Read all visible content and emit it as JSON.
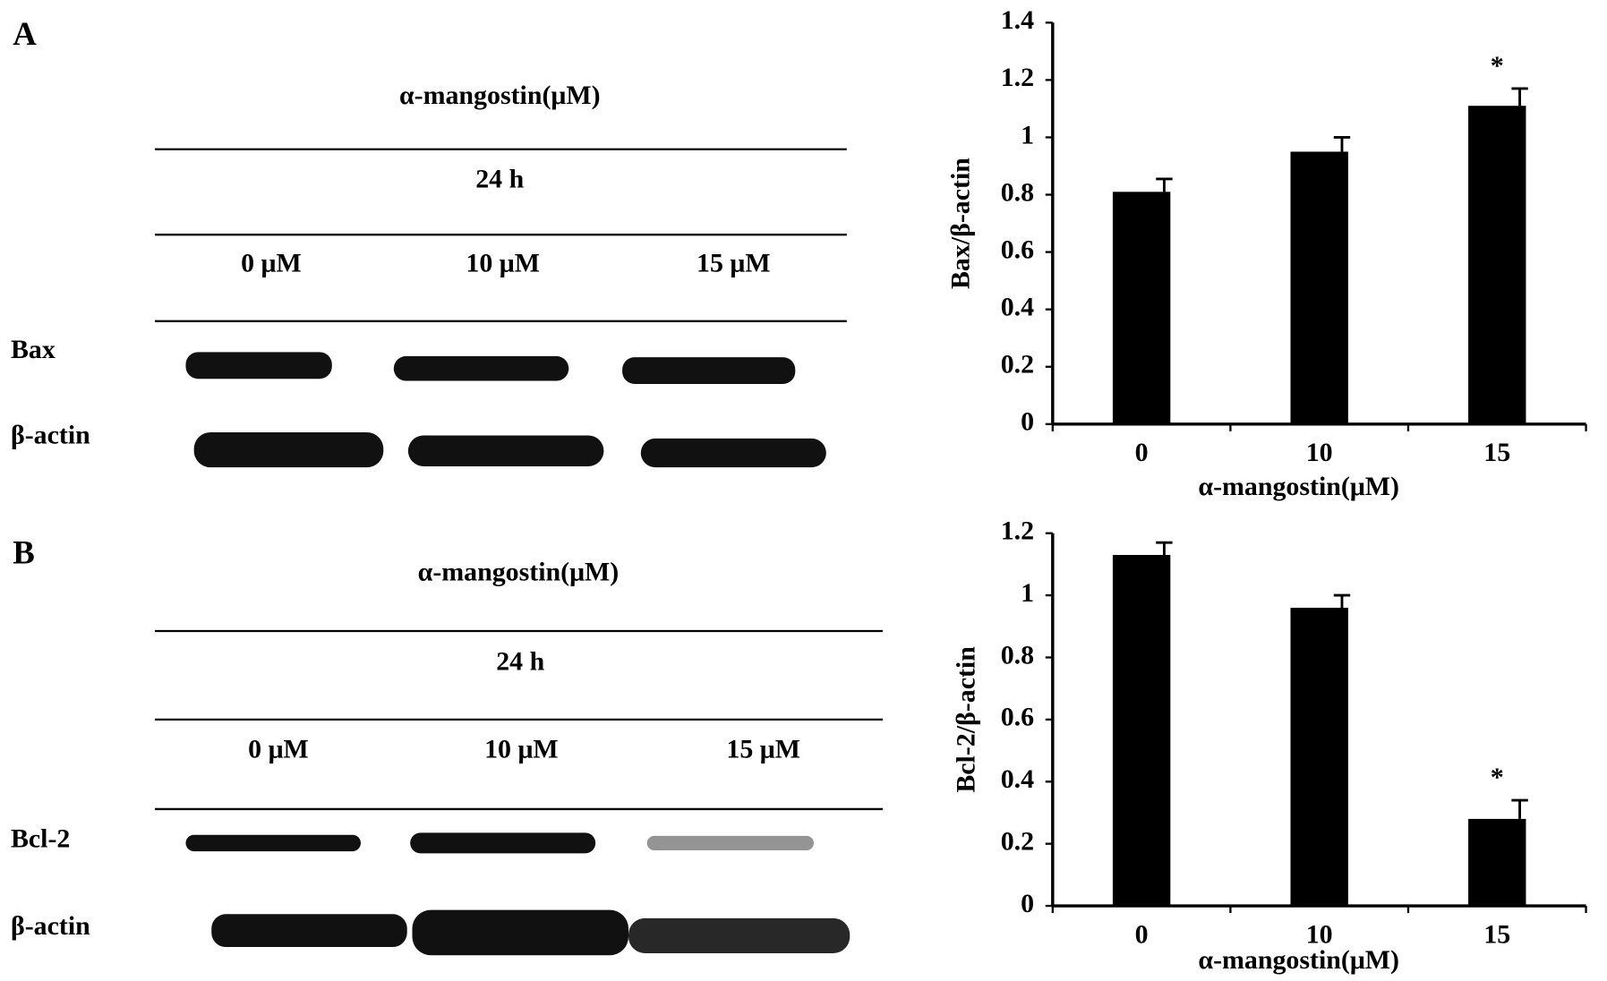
{
  "panels": [
    {
      "label": "A",
      "header": "α-mangostin(μM)",
      "time": "24 h",
      "doses": [
        "0 μM",
        "10 μM",
        "15 μM"
      ],
      "rows": [
        "Bax",
        "β-actin"
      ]
    },
    {
      "label": "B",
      "header": "α-mangostin(μM)",
      "time": "24 h",
      "doses": [
        "0 μM",
        "10 μM",
        "15 μM"
      ],
      "rows": [
        "Bcl-2",
        "β-actin"
      ]
    }
  ],
  "chart_data": [
    {
      "type": "bar",
      "y_label": "Bax/β-actin",
      "x_label": "α-mangostin(μM)",
      "categories": [
        "0",
        "10",
        "15"
      ],
      "values": [
        0.81,
        0.95,
        1.11
      ],
      "errors": [
        0.045,
        0.05,
        0.06
      ],
      "significance": [
        null,
        null,
        "*"
      ],
      "color": "#000000",
      "ylim": [
        0,
        1.4
      ],
      "yticks": [
        0,
        0.2,
        0.4,
        0.6,
        0.8,
        1,
        1.2,
        1.4
      ]
    },
    {
      "type": "bar",
      "y_label": "Bcl-2/β-actin",
      "x_label": "α-mangostin(μM)",
      "categories": [
        "0",
        "10",
        "15"
      ],
      "values": [
        1.13,
        0.96,
        0.28
      ],
      "errors": [
        0.04,
        0.04,
        0.06
      ],
      "significance": [
        null,
        null,
        "*"
      ],
      "color": "#000000",
      "ylim": [
        0,
        1.2
      ],
      "yticks": [
        0,
        0.2,
        0.4,
        0.6,
        0.8,
        1,
        1.2
      ]
    }
  ]
}
